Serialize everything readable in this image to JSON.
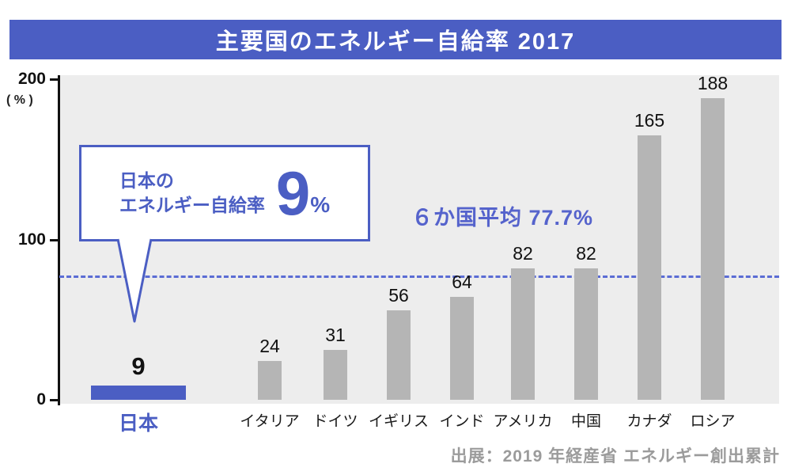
{
  "header": {
    "title": "主要国のエネルギー自給率 2017"
  },
  "chart_data": {
    "type": "bar",
    "title": "主要国のエネルギー自給率 2017",
    "categories": [
      "日本",
      "イタリア",
      "ドイツ",
      "イギリス",
      "インド",
      "アメリカ",
      "中国",
      "カナダ",
      "ロシア"
    ],
    "values": [
      9,
      24,
      31,
      56,
      64,
      82,
      82,
      165,
      188
    ],
    "highlight_index": 0,
    "ylabel": "( % )",
    "ylim": [
      0,
      200
    ],
    "yticks": [
      200,
      100,
      0
    ],
    "grid": false,
    "legend": "none",
    "average_line": {
      "value": 77.7,
      "label": "６か国平均 77.7%"
    },
    "colors": {
      "bar": "#b5b5b5",
      "highlight_bar": "#4b5ec3",
      "banner": "#4b5ec3",
      "dashed_line": "#5b6cd4",
      "plot_background": "#ededed"
    }
  },
  "axis": {
    "unit_label": "( % )",
    "tick_200": "200",
    "tick_100": "100",
    "tick_0": "0"
  },
  "callout": {
    "label_line1": "日本の",
    "label_line2": "エネルギー自給率",
    "value": "9",
    "unit": "%"
  },
  "average_label": "６か国平均 77.7%",
  "source": "出展：2019 年経産省  エネルギー創出累計"
}
